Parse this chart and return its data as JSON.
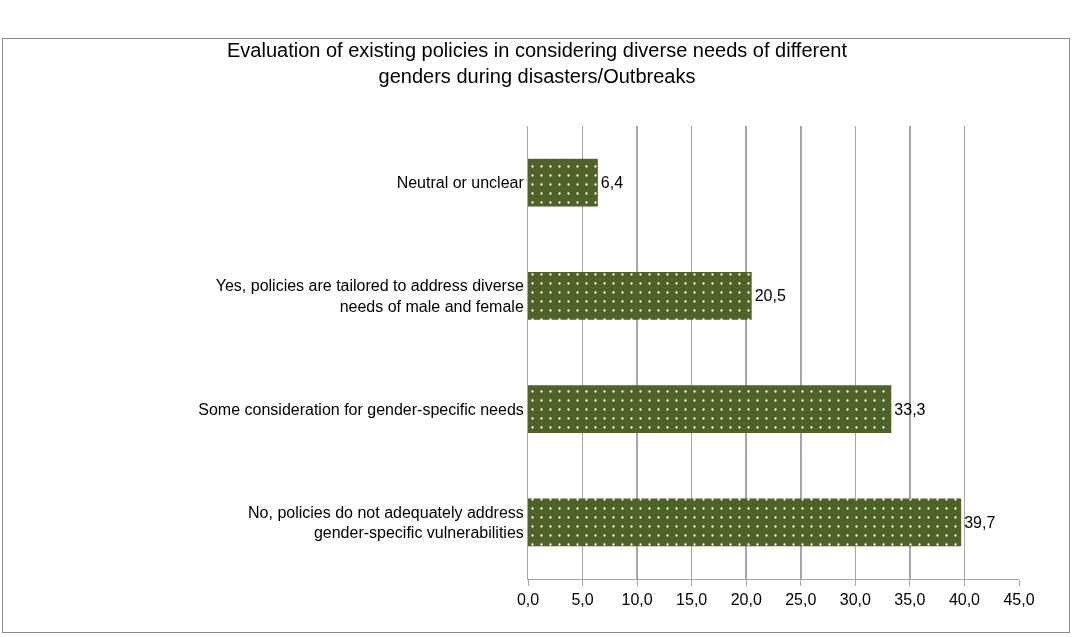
{
  "chart_data": {
    "type": "bar",
    "orientation": "horizontal",
    "title": "Evaluation of existing policies in considering diverse needs of different genders during disasters/Outbreaks",
    "categories": [
      "Neutral or unclear",
      "Yes, policies are tailored to address diverse needs of male and female",
      "Some consideration for gender-specific needs",
      "No, policies do not adequately address gender-specific vulnerabilities"
    ],
    "values": [
      6.4,
      20.5,
      33.3,
      39.7
    ],
    "value_labels": [
      "6,4",
      "20,5",
      "33,3",
      "39,7"
    ],
    "color": "#4f6228",
    "xlim": [
      0,
      45
    ],
    "xticks": [
      {
        "value": 0,
        "label": "0,0"
      },
      {
        "value": 5,
        "label": "5,0"
      },
      {
        "value": 10,
        "label": "10,0"
      },
      {
        "value": 15,
        "label": "15,0"
      },
      {
        "value": 20,
        "label": "20,0"
      },
      {
        "value": 25,
        "label": "25,0"
      },
      {
        "value": 30,
        "label": "30,0"
      },
      {
        "value": 35,
        "label": "35,0"
      },
      {
        "value": 40,
        "label": "40,0"
      },
      {
        "value": 45,
        "label": "45,0"
      }
    ],
    "grid": "x"
  }
}
